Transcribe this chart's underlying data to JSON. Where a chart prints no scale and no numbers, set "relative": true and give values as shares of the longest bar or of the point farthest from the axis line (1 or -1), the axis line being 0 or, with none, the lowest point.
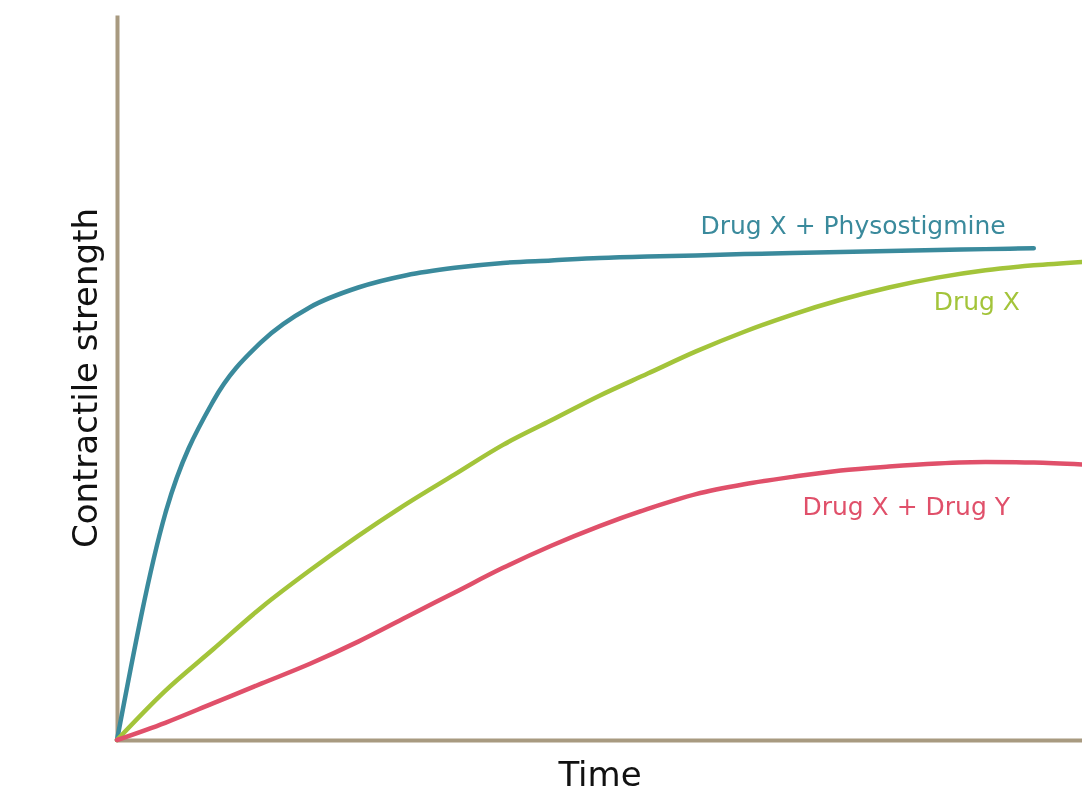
{
  "chart_data": {
    "type": "line",
    "relative": true,
    "xlabel": "Time",
    "ylabel": "Contractile strength",
    "grid": false,
    "marker": "none",
    "line_style": "solid",
    "categories": [
      null,
      null,
      null,
      null,
      null,
      null,
      null,
      null,
      null,
      null,
      null,
      null,
      null,
      null,
      null,
      null,
      null,
      null,
      null,
      null,
      null
    ],
    "series": [
      {
        "name": "Drug X + Physostigmine",
        "color": "#3a8a9c",
        "values": [
          0,
          0.46,
          0.69,
          0.81,
          0.88,
          0.92,
          0.945,
          0.96,
          0.97,
          0.975,
          0.98,
          0.983,
          0.985,
          0.988,
          0.99,
          0.992,
          0.994,
          0.996,
          0.998,
          1.0,
          null
        ]
      },
      {
        "name": "Drug X",
        "color": "#a3c43a",
        "values": [
          0,
          0.1,
          0.185,
          0.27,
          0.345,
          0.415,
          0.48,
          0.54,
          0.6,
          0.65,
          0.7,
          0.745,
          0.79,
          0.83,
          0.865,
          0.895,
          0.92,
          0.94,
          0.955,
          0.965,
          0.972
        ]
      },
      {
        "name": "Drug X + Drug Y",
        "color": "#e0506a",
        "values": [
          0,
          0.035,
          0.075,
          0.115,
          0.155,
          0.2,
          0.25,
          0.3,
          0.35,
          0.395,
          0.435,
          0.47,
          0.5,
          0.52,
          0.535,
          0.548,
          0.556,
          0.562,
          0.565,
          0.564,
          0.56
        ]
      }
    ]
  }
}
